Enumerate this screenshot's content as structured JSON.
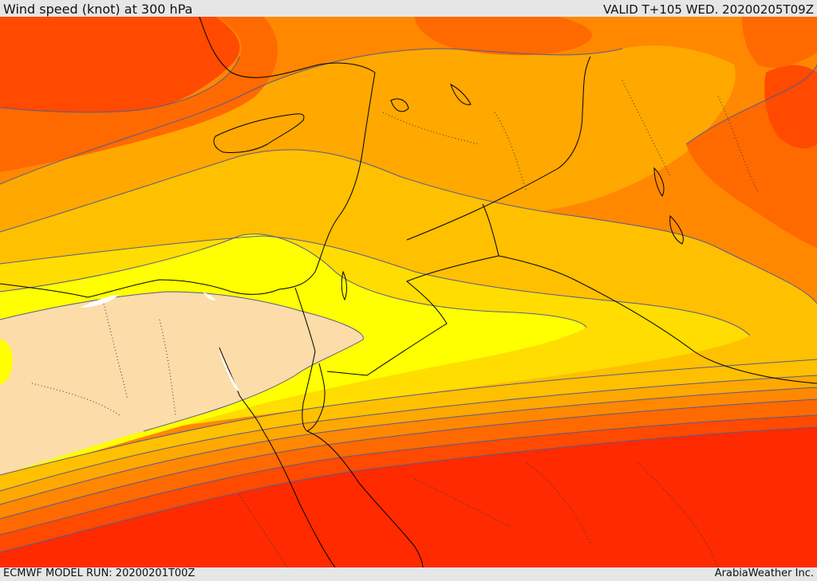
{
  "header": {
    "title": "Wind speed (knot) at 300 hPa",
    "valid": "VALID T+105 WED. 20200205T09Z"
  },
  "footer": {
    "model_run": "ECMWF MODEL RUN: 20200201T00Z",
    "credit": "ArabiaWeather Inc."
  },
  "map": {
    "palette": {
      "band_lowest": "#fcdca8",
      "band_yellow": "#ffff00",
      "band_gold": "#ffdd00",
      "band_amber": "#ffc000",
      "band_light_orange": "#ffa800",
      "band_orange": "#ff8800",
      "band_dark_orange": "#ff6a00",
      "band_red_orange": "#ff4a00",
      "band_red": "#ff2a00",
      "water_gap": "#ffffff",
      "coastline": "#000000",
      "contour": "#5a5a8a"
    }
  }
}
